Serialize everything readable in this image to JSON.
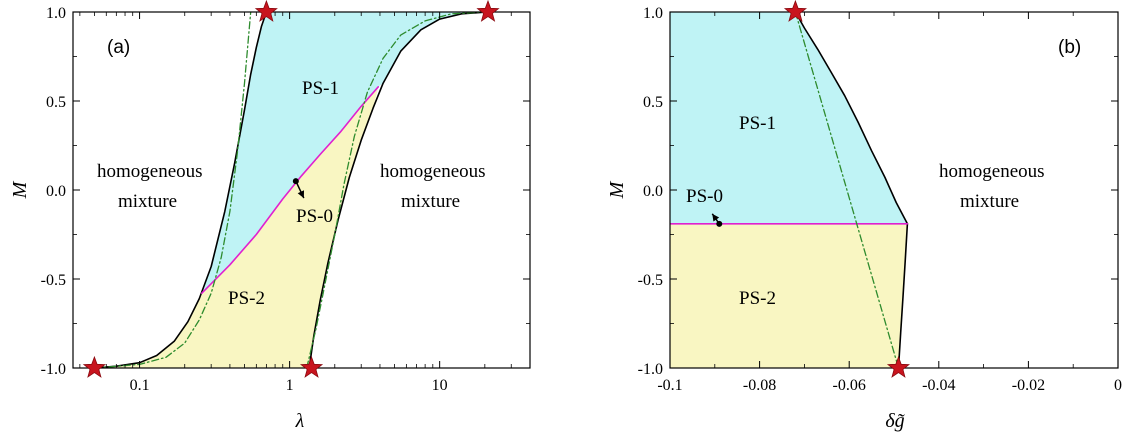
{
  "chart_data": [
    {
      "type": "line",
      "panel_label": "(a)",
      "xlabel": "λ",
      "ylabel": "M",
      "xscale": "log",
      "xlim": [
        0.036,
        40
      ],
      "ylim": [
        -1.0,
        1.0
      ],
      "xticks": [
        0.1,
        1,
        10
      ],
      "xtick_labels": [
        "0.1",
        "1",
        "10"
      ],
      "yticks": [
        -1.0,
        -0.5,
        0.0,
        0.5,
        1.0
      ],
      "ytick_labels": [
        "-1.0",
        "-0.5",
        "0.0",
        "0.5",
        "1.0"
      ],
      "grid": false,
      "series": [
        {
          "style": "black-solid",
          "x": [
            0.05,
            0.07,
            0.1,
            0.13,
            0.17,
            0.21,
            0.25,
            0.3,
            0.37,
            0.43,
            0.5,
            0.55,
            0.6,
            0.65,
            0.7
          ],
          "y": [
            -1.0,
            -0.99,
            -0.97,
            -0.93,
            -0.85,
            -0.74,
            -0.61,
            -0.43,
            -0.12,
            0.15,
            0.45,
            0.65,
            0.8,
            0.92,
            1.0
          ]
        },
        {
          "style": "black-solid",
          "x": [
            1.35,
            1.45,
            1.6,
            1.8,
            2.1,
            2.5,
            3.0,
            3.6,
            4.2,
            5.5,
            7.5,
            10,
            14,
            21
          ],
          "y": [
            -1.0,
            -0.82,
            -0.62,
            -0.41,
            -0.17,
            0.07,
            0.28,
            0.46,
            0.6,
            0.78,
            0.9,
            0.96,
            0.99,
            1.0
          ]
        },
        {
          "style": "magenta-solid",
          "x": [
            0.26,
            0.4,
            0.6,
            0.9,
            1.2,
            1.6,
            2.2,
            3.0,
            3.9
          ],
          "y": [
            -0.58,
            -0.42,
            -0.25,
            -0.05,
            0.08,
            0.2,
            0.33,
            0.47,
            0.58
          ]
        },
        {
          "style": "green-dashdot",
          "x": [
            0.05,
            0.1,
            0.15,
            0.2,
            0.25,
            0.3,
            0.35,
            0.4,
            0.45,
            0.5,
            0.55
          ],
          "y": [
            -1.0,
            -0.98,
            -0.94,
            -0.86,
            -0.73,
            -0.58,
            -0.38,
            -0.12,
            0.22,
            0.6,
            1.0
          ]
        },
        {
          "style": "green-dashdot",
          "x": [
            1.3,
            1.5,
            1.7,
            2.0,
            2.3,
            2.7,
            3.3,
            4.2,
            5.5,
            8,
            12,
            20
          ],
          "y": [
            -1.0,
            -0.78,
            -0.55,
            -0.25,
            0.03,
            0.3,
            0.55,
            0.74,
            0.87,
            0.95,
            0.99,
            1.0
          ]
        }
      ],
      "stars": [
        [
          0.05,
          -1.0
        ],
        [
          0.7,
          1.0
        ],
        [
          1.4,
          -1.0
        ],
        [
          21,
          1.0
        ]
      ],
      "region_labels": [
        "PS-1",
        "PS-2",
        "PS-0",
        "homogeneous",
        "mixture",
        "homogeneous",
        "mixture"
      ],
      "ps0_marker": [
        1.1,
        0.05
      ],
      "colors": {
        "ps1": "#bff3f5",
        "ps2": "#f9f6c2",
        "boundary": "#000000",
        "ps0_line": "#e020d0",
        "dashdot": "#2e8b2e",
        "star": "#c8141e"
      }
    },
    {
      "type": "line",
      "panel_label": "(b)",
      "xlabel": "δg̃",
      "ylabel": "M",
      "xscale": "linear",
      "xlim": [
        -0.1,
        0.0
      ],
      "ylim": [
        -1.0,
        1.0
      ],
      "xticks": [
        -0.1,
        -0.08,
        -0.06,
        -0.04,
        -0.02,
        0
      ],
      "xtick_labels": [
        "-0.1",
        "-0.08",
        "-0.06",
        "-0.04",
        "-0.02",
        "0"
      ],
      "yticks": [
        -1.0,
        -0.5,
        0.0,
        0.5,
        1.0
      ],
      "ytick_labels": [
        "-1.0",
        "-0.5",
        "0.0",
        "0.5",
        "1.0"
      ],
      "grid": false,
      "series": [
        {
          "style": "black-solid",
          "x": [
            -0.072,
            -0.07,
            -0.067,
            -0.064,
            -0.061,
            -0.058,
            -0.055,
            -0.052,
            -0.0495,
            -0.047
          ],
          "y": [
            1.0,
            0.91,
            0.79,
            0.66,
            0.53,
            0.38,
            0.22,
            0.07,
            -0.07,
            -0.19
          ]
        },
        {
          "style": "black-solid",
          "x": [
            -0.047,
            -0.0475,
            -0.048,
            -0.0485,
            -0.049
          ],
          "y": [
            -0.19,
            -0.4,
            -0.6,
            -0.8,
            -1.0
          ]
        },
        {
          "style": "magenta-solid",
          "x": [
            -0.1,
            -0.047
          ],
          "y": [
            -0.19,
            -0.19
          ]
        },
        {
          "style": "green-dashdot",
          "x": [
            -0.072,
            -0.049
          ],
          "y": [
            1.0,
            -1.0
          ]
        }
      ],
      "stars": [
        [
          -0.072,
          1.0
        ],
        [
          -0.049,
          -1.0
        ]
      ],
      "region_labels": [
        "PS-1",
        "PS-2",
        "PS-0",
        "homogeneous",
        "mixture"
      ],
      "ps0_marker": [
        -0.089,
        -0.19
      ],
      "colors": {
        "ps1": "#bff3f5",
        "ps2": "#f9f6c2",
        "boundary": "#000000",
        "ps0_line": "#e020d0",
        "dashdot": "#2e8b2e",
        "star": "#c8141e"
      }
    }
  ]
}
